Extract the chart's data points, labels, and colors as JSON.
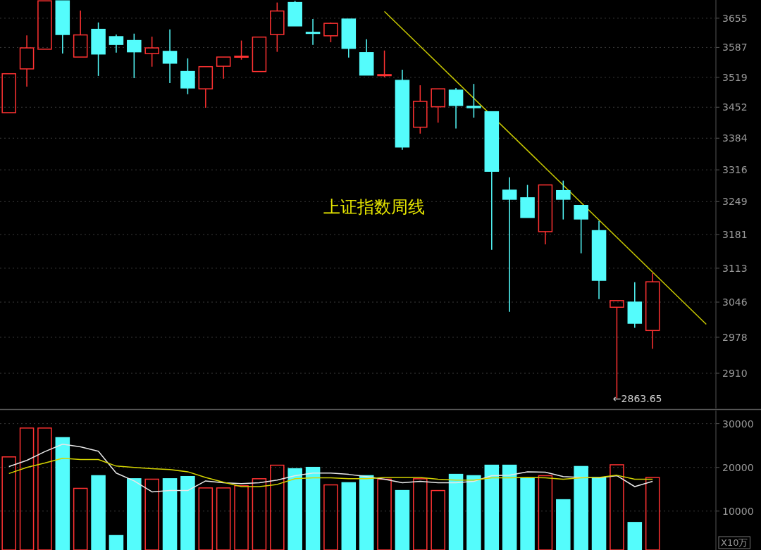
{
  "chart_data": [
    {
      "type": "candlestick",
      "log": true,
      "grid": "y",
      "tick_labels": "y",
      "categories": [
        null,
        null,
        null,
        null,
        null,
        null,
        null,
        null,
        null,
        null,
        null,
        null,
        null,
        null,
        null,
        null,
        null,
        null,
        null,
        null,
        null,
        null,
        null,
        null,
        null,
        null,
        null,
        null,
        null,
        null,
        null,
        null,
        null,
        null,
        null,
        null,
        null,
        null,
        null,
        null
      ],
      "ylim": [
        2845,
        3698
      ],
      "yticks": [
        2910,
        2978,
        3046,
        3113,
        3181,
        3249,
        3316,
        3384,
        3452,
        3519,
        3587,
        3655
      ],
      "annotations": [
        "上证指数周线",
        "←2863.65"
      ],
      "series": [
        {
          "colors": [
            "#ff3232",
            "#ff3232",
            "#ff3232",
            "#54fcfc",
            "#ff3232",
            "#54fcfc",
            "#54fcfc",
            "#54fcfc",
            "#ff3232",
            "#54fcfc",
            "#54fcfc",
            "#ff3232",
            "#ff3232",
            "#ff3232",
            "#ff3232",
            "#ff3232",
            "#54fcfc",
            "#54fcfc",
            "#ff3232",
            "#54fcfc",
            "#54fcfc",
            "#ff3232",
            "#54fcfc",
            "#ff3232",
            "#ff3232",
            "#54fcfc",
            "#54fcfc",
            "#54fcfc",
            "#54fcfc",
            "#54fcfc",
            "#ff3232",
            "#54fcfc",
            "#54fcfc",
            "#54fcfc",
            "#ff3232",
            "#54fcfc",
            "#ff3232",
            null,
            null,
            null
          ],
          "ohlc": [
            [
              3440,
              3527,
              3440,
              3527
            ],
            [
              3538,
              3615,
              3498,
              3586
            ],
            [
              3583,
              3696,
              3583,
              3696
            ],
            [
              3696,
              3696,
              3573,
              3617
            ],
            [
              3565,
              3673,
              3565,
              3616
            ],
            [
              3629,
              3645,
              3522,
              3572
            ],
            [
              3612,
              3617,
              3575,
              3594
            ],
            [
              3603,
              3619,
              3517,
              3577
            ],
            [
              3573,
              3612,
              3543,
              3586
            ],
            [
              3578,
              3629,
              3506,
              3551
            ],
            [
              3532,
              3562,
              3481,
              3495
            ],
            [
              3493,
              3543,
              3451,
              3543
            ],
            [
              3544,
              3565,
              3516,
              3565
            ],
            [
              3565,
              3603,
              3559,
              3567
            ],
            [
              3532,
              3611,
              3532,
              3611
            ],
            [
              3617,
              3692,
              3577,
              3672
            ],
            [
              3692,
              3696,
              3637,
              3637
            ],
            [
              3622,
              3653,
              3593,
              3620
            ],
            [
              3614,
              3645,
              3599,
              3643
            ],
            [
              3653,
              3653,
              3564,
              3585
            ],
            [
              3575,
              3606,
              3524,
              3524
            ],
            [
              3524,
              3580,
              3519,
              3525
            ],
            [
              3512,
              3536,
              3359,
              3365
            ],
            [
              3408,
              3501,
              3394,
              3465
            ],
            [
              3453,
              3493,
              3418,
              3493
            ],
            [
              3490,
              3495,
              3405,
              3456
            ],
            [
              3454,
              3504,
              3429,
              3451
            ],
            [
              3442,
              3442,
              3150,
              3313
            ],
            [
              3273,
              3300,
              3027,
              3254
            ],
            [
              3257,
              3284,
              3216,
              3216
            ],
            [
              3187,
              3284,
              3161,
              3284
            ],
            [
              3272,
              3293,
              3212,
              3254
            ],
            [
              3241,
              3241,
              3143,
              3213
            ],
            [
              3189,
              3209,
              3052,
              3089
            ],
            [
              3036,
              3049,
              2863.65,
              3049
            ],
            [
              3046,
              3085,
              2996,
              3005
            ],
            [
              2991,
              3103,
              2956,
              3086
            ],
            null,
            null,
            null
          ]
        },
        {
          "type": "line",
          "color": "#c8c800",
          "values": [
            null,
            null,
            null,
            null,
            null,
            null,
            null,
            null,
            null,
            null,
            null,
            null,
            null,
            null,
            null,
            null,
            null,
            null,
            null,
            null,
            null,
            3671,
            null,
            null,
            null,
            null,
            null,
            null,
            null,
            null,
            null,
            null,
            null,
            null,
            null,
            null,
            null,
            null,
            null,
            3003
          ]
        }
      ]
    },
    {
      "type": "bar",
      "grid": "y",
      "tick_labels": "y",
      "ylabel": "X10万",
      "categories": [
        null,
        null,
        null,
        null,
        null,
        null,
        null,
        null,
        null,
        null,
        null,
        null,
        null,
        null,
        null,
        null,
        null,
        null,
        null,
        null,
        null,
        null,
        null,
        null,
        null,
        null,
        null,
        null,
        null,
        null,
        null,
        null,
        null,
        null,
        null,
        null,
        null,
        null,
        null,
        null
      ],
      "ylim": [
        1100,
        33000
      ],
      "yticks": [
        10000,
        20000,
        30000
      ],
      "series": [
        {
          "colors": [
            "#ff3232",
            "#ff3232",
            "#ff3232",
            "#54fcfc",
            "#ff3232",
            "#54fcfc",
            "#54fcfc",
            "#54fcfc",
            "#ff3232",
            "#54fcfc",
            "#54fcfc",
            "#ff3232",
            "#ff3232",
            "#ff3232",
            "#ff3232",
            "#ff3232",
            "#54fcfc",
            "#54fcfc",
            "#ff3232",
            "#54fcfc",
            "#54fcfc",
            "#ff3232",
            "#54fcfc",
            "#ff3232",
            "#ff3232",
            "#54fcfc",
            "#54fcfc",
            "#54fcfc",
            "#54fcfc",
            "#54fcfc",
            "#ff3232",
            "#54fcfc",
            "#54fcfc",
            "#54fcfc",
            "#ff3232",
            "#54fcfc",
            "#ff3232",
            null,
            null,
            null
          ],
          "values": [
            22400,
            29000,
            29000,
            26800,
            15200,
            18100,
            4400,
            17400,
            17300,
            17400,
            17900,
            15300,
            15300,
            15800,
            17400,
            20500,
            19700,
            20000,
            16000,
            16500,
            18100,
            17300,
            14700,
            17400,
            14700,
            18400,
            18100,
            20500,
            20500,
            17600,
            18100,
            12600,
            20200,
            17700,
            20600,
            7400,
            17700,
            null,
            null,
            null
          ]
        },
        {
          "type": "line",
          "color": "#e8e8e8",
          "values": [
            20200,
            21600,
            23600,
            25300,
            24700,
            23700,
            18700,
            16900,
            14400,
            14700,
            14700,
            16900,
            16500,
            16300,
            16500,
            17100,
            18100,
            18700,
            18700,
            18400,
            17900,
            17300,
            16500,
            16800,
            16500,
            16500,
            16800,
            18100,
            18200,
            19000,
            18900,
            17900,
            17700,
            17600,
            18100,
            15600,
            16800,
            null,
            null,
            null
          ]
        },
        {
          "type": "line",
          "color": "#d4d400",
          "values": [
            18600,
            20000,
            21000,
            22100,
            21800,
            21800,
            20300,
            20000,
            19700,
            19500,
            19000,
            17700,
            16600,
            15600,
            15600,
            16100,
            17400,
            17600,
            17600,
            17400,
            17400,
            17700,
            17700,
            17700,
            17300,
            17100,
            17100,
            17600,
            17600,
            17700,
            17600,
            17300,
            17600,
            17700,
            18200,
            17300,
            17300,
            null,
            null,
            null
          ]
        }
      ]
    }
  ]
}
